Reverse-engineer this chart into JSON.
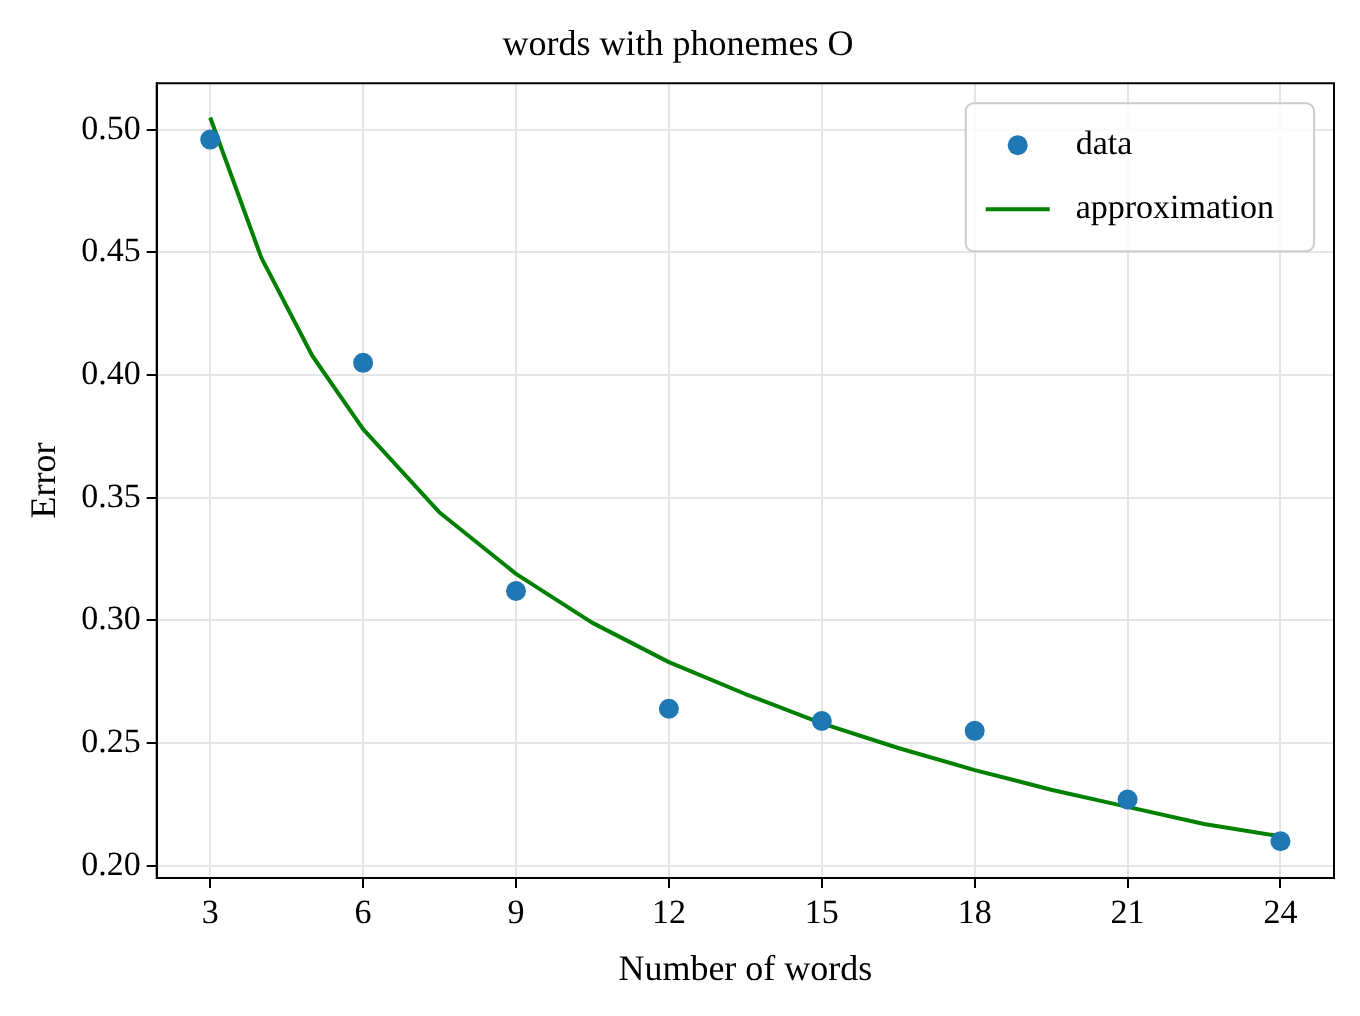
{
  "chart_data": {
    "type": "scatter",
    "title": "words with phonemes O",
    "xlabel": "Number of words",
    "ylabel": "Error",
    "xlim": [
      1.95,
      25.05
    ],
    "xticks": [
      3,
      6,
      9,
      12,
      15,
      18,
      21,
      24
    ],
    "ylim": [
      0.195,
      0.519
    ],
    "yticks": [
      {
        "value": 0.2,
        "label": "0.20"
      },
      {
        "value": 0.25,
        "label": "0.25"
      },
      {
        "value": 0.3,
        "label": "0.30"
      },
      {
        "value": 0.35,
        "label": "0.35"
      },
      {
        "value": 0.4,
        "label": "0.40"
      },
      {
        "value": 0.45,
        "label": "0.45"
      },
      {
        "value": 0.5,
        "label": "0.50"
      }
    ],
    "grid": true,
    "legend": "top right",
    "series": [
      {
        "name": "data",
        "type": "scatter",
        "color": "#1f77b4",
        "marker": "circle",
        "x": [
          3,
          6,
          9,
          12,
          15,
          18,
          21,
          24
        ],
        "values": [
          0.496,
          0.405,
          0.312,
          0.264,
          0.259,
          0.255,
          0.227,
          0.21
        ]
      },
      {
        "name": "approximation",
        "type": "line",
        "color": "#008000",
        "marker": "none",
        "line_style": "solid",
        "x": [
          3,
          4,
          5,
          6,
          7.5,
          9,
          10.5,
          12,
          13.5,
          15,
          16.5,
          18,
          19.5,
          21,
          22.5,
          24
        ],
        "values": [
          0.505,
          0.448,
          0.408,
          0.378,
          0.344,
          0.319,
          0.299,
          0.283,
          0.27,
          0.258,
          0.248,
          0.239,
          0.231,
          0.224,
          0.217,
          0.212
        ]
      }
    ]
  }
}
